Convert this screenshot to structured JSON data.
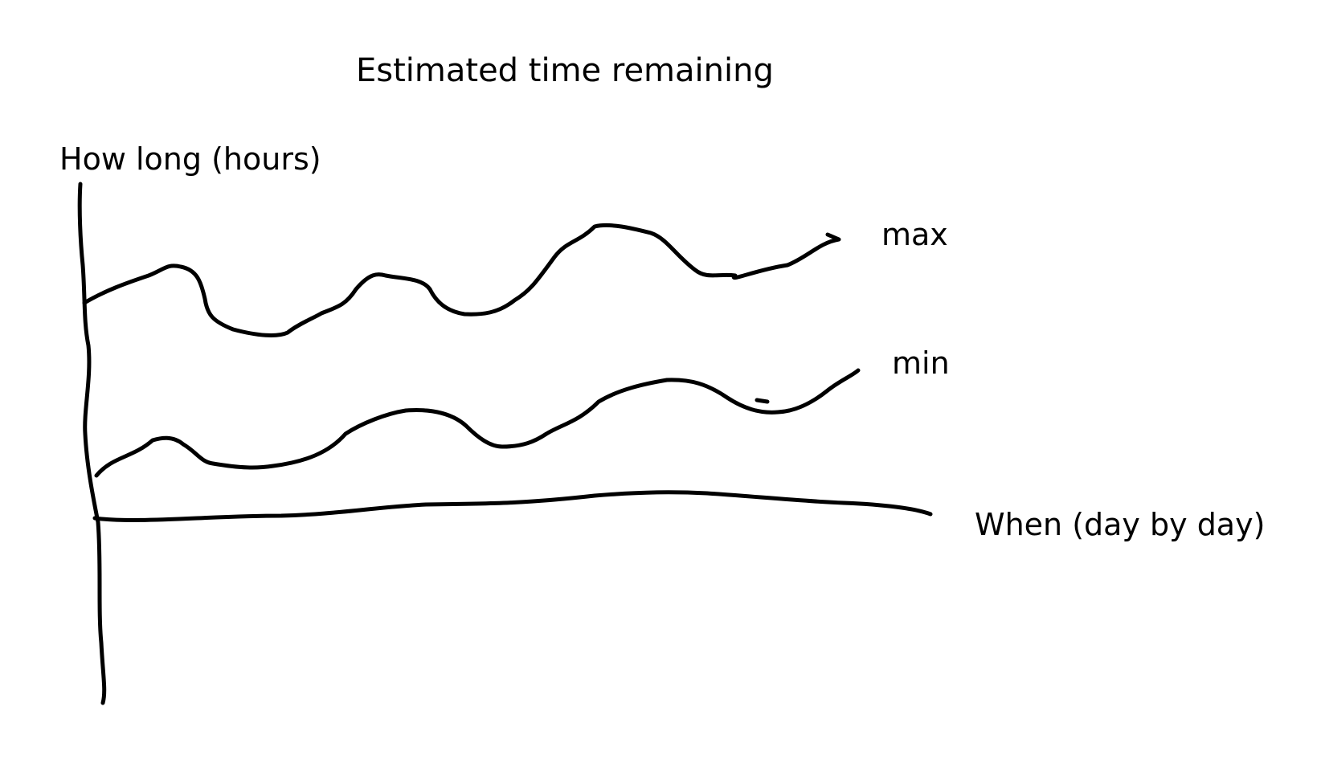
{
  "chart_data": {
    "type": "line",
    "title": "Estimated time remaining",
    "ylabel": "How long (hours)",
    "xlabel": "When (day by day)",
    "series": [
      {
        "name": "max",
        "values": []
      },
      {
        "name": "min",
        "values": []
      }
    ],
    "grid": false,
    "ticks": false,
    "style": "hand-drawn sketch",
    "line_color": "#000000"
  }
}
